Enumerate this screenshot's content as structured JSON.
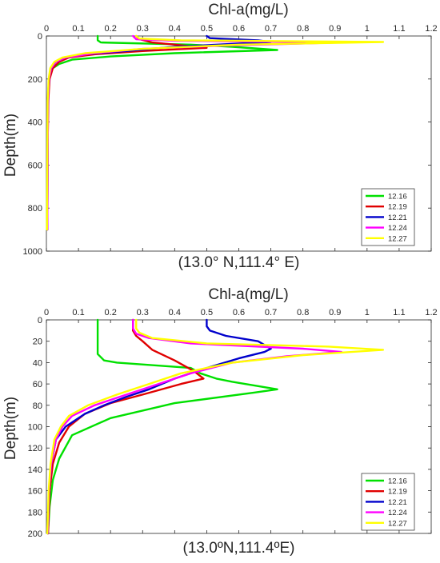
{
  "chart_data": [
    {
      "type": "line",
      "title": "Chl-a(mg/L)",
      "xlabel": "Chl-a(mg/L)",
      "ylabel": "Depth(m)",
      "caption": "(13.0° N,111.4° E)",
      "xlim": [
        0,
        1.2
      ],
      "ylim": [
        0,
        1000
      ],
      "y_reversed": true,
      "x_axis_position": "top",
      "xticks": [
        0,
        0.1,
        0.2,
        0.3,
        0.4,
        0.5,
        0.6,
        0.7,
        0.8,
        0.9,
        1,
        1.1,
        1.2
      ],
      "yticks": [
        0,
        200,
        400,
        600,
        800,
        1000
      ],
      "legend_position": "bottom-right",
      "series": [
        {
          "name": "12.16",
          "color": "#00e000",
          "points": [
            [
              0.16,
              0
            ],
            [
              0.16,
              20
            ],
            [
              0.17,
              30
            ],
            [
              0.45,
              40
            ],
            [
              0.58,
              50
            ],
            [
              0.72,
              65
            ],
            [
              0.4,
              80
            ],
            [
              0.2,
              95
            ],
            [
              0.08,
              110
            ],
            [
              0.04,
              130
            ],
            [
              0.02,
              150
            ],
            [
              0.01,
              180
            ],
            [
              0.006,
              250
            ],
            [
              0.004,
              400
            ],
            [
              0.003,
              600
            ],
            [
              0.002,
              900
            ]
          ]
        },
        {
          "name": "12.19",
          "color": "#e00000",
          "points": [
            [
              0.28,
              0
            ],
            [
              0.29,
              15
            ],
            [
              0.33,
              30
            ],
            [
              0.5,
              55
            ],
            [
              0.3,
              70
            ],
            [
              0.15,
              85
            ],
            [
              0.07,
              100
            ],
            [
              0.04,
              120
            ],
            [
              0.02,
              150
            ],
            [
              0.01,
              200
            ],
            [
              0.006,
              300
            ],
            [
              0.004,
              500
            ],
            [
              0.003,
              900
            ]
          ]
        },
        {
          "name": "12.21",
          "color": "#0000cc",
          "points": [
            [
              0.5,
              0
            ],
            [
              0.51,
              10
            ],
            [
              0.66,
              20
            ],
            [
              0.7,
              28
            ],
            [
              0.4,
              50
            ],
            [
              0.25,
              70
            ],
            [
              0.12,
              85
            ],
            [
              0.06,
              100
            ],
            [
              0.03,
              120
            ],
            [
              0.015,
              150
            ],
            [
              0.008,
              200
            ],
            [
              0.005,
              300
            ],
            [
              0.003,
              900
            ]
          ]
        },
        {
          "name": "12.24",
          "color": "#ff00ff",
          "points": [
            [
              0.27,
              0
            ],
            [
              0.28,
              15
            ],
            [
              0.4,
              22
            ],
            [
              0.92,
              30
            ],
            [
              0.55,
              45
            ],
            [
              0.3,
              60
            ],
            [
              0.15,
              80
            ],
            [
              0.06,
              100
            ],
            [
              0.03,
              120
            ],
            [
              0.015,
              150
            ],
            [
              0.008,
              200
            ],
            [
              0.005,
              300
            ],
            [
              0.003,
              900
            ]
          ]
        },
        {
          "name": "12.27",
          "color": "#ffff00",
          "points": [
            [
              0.28,
              0
            ],
            [
              0.29,
              12
            ],
            [
              0.42,
              20
            ],
            [
              1.05,
              28
            ],
            [
              0.6,
              40
            ],
            [
              0.3,
              60
            ],
            [
              0.12,
              80
            ],
            [
              0.05,
              100
            ],
            [
              0.025,
              120
            ],
            [
              0.012,
              150
            ],
            [
              0.007,
              200
            ],
            [
              0.004,
              300
            ],
            [
              0.002,
              900
            ]
          ]
        }
      ]
    },
    {
      "type": "line",
      "title": "Chl-a(mg/L)",
      "xlabel": "Chl-a(mg/L)",
      "ylabel": "Depth(m)",
      "caption": "(13.0ºN,111.4ºE)",
      "xlim": [
        0,
        1.2
      ],
      "ylim": [
        0,
        200
      ],
      "y_reversed": true,
      "x_axis_position": "top",
      "xticks": [
        0,
        0.1,
        0.2,
        0.3,
        0.4,
        0.5,
        0.6,
        0.7,
        0.8,
        0.9,
        1,
        1.1,
        1.2
      ],
      "yticks": [
        0,
        20,
        40,
        60,
        80,
        100,
        120,
        140,
        160,
        180,
        200
      ],
      "legend_position": "bottom-right",
      "series": [
        {
          "name": "12.16",
          "color": "#00e000",
          "points": [
            [
              0.16,
              0
            ],
            [
              0.16,
              20
            ],
            [
              0.16,
              32
            ],
            [
              0.18,
              38
            ],
            [
              0.22,
              40
            ],
            [
              0.45,
              45
            ],
            [
              0.48,
              50
            ],
            [
              0.53,
              55
            ],
            [
              0.58,
              58
            ],
            [
              0.72,
              65
            ],
            [
              0.65,
              68
            ],
            [
              0.4,
              78
            ],
            [
              0.2,
              92
            ],
            [
              0.08,
              108
            ],
            [
              0.04,
              130
            ],
            [
              0.02,
              150
            ],
            [
              0.01,
              175
            ],
            [
              0.005,
              200
            ]
          ]
        },
        {
          "name": "12.19",
          "color": "#e00000",
          "points": [
            [
              0.27,
              0
            ],
            [
              0.27,
              10
            ],
            [
              0.28,
              15
            ],
            [
              0.3,
              20
            ],
            [
              0.33,
              28
            ],
            [
              0.4,
              38
            ],
            [
              0.46,
              48
            ],
            [
              0.49,
              55
            ],
            [
              0.42,
              60
            ],
            [
              0.3,
              70
            ],
            [
              0.2,
              78
            ],
            [
              0.12,
              88
            ],
            [
              0.07,
              100
            ],
            [
              0.04,
              115
            ],
            [
              0.02,
              135
            ],
            [
              0.01,
              160
            ],
            [
              0.005,
              200
            ]
          ]
        },
        {
          "name": "12.21",
          "color": "#0000cc",
          "points": [
            [
              0.5,
              0
            ],
            [
              0.5,
              6
            ],
            [
              0.51,
              10
            ],
            [
              0.56,
              15
            ],
            [
              0.66,
              20
            ],
            [
              0.7,
              27
            ],
            [
              0.68,
              30
            ],
            [
              0.6,
              36
            ],
            [
              0.5,
              45
            ],
            [
              0.4,
              55
            ],
            [
              0.32,
              65
            ],
            [
              0.25,
              72
            ],
            [
              0.18,
              80
            ],
            [
              0.12,
              88
            ],
            [
              0.06,
              100
            ],
            [
              0.03,
              112
            ],
            [
              0.015,
              135
            ],
            [
              0.008,
              160
            ],
            [
              0.004,
              200
            ]
          ]
        },
        {
          "name": "12.24",
          "color": "#ff00ff",
          "points": [
            [
              0.27,
              0
            ],
            [
              0.27,
              8
            ],
            [
              0.28,
              13
            ],
            [
              0.32,
              17
            ],
            [
              0.45,
              22
            ],
            [
              0.8,
              27
            ],
            [
              0.92,
              30
            ],
            [
              0.75,
              34
            ],
            [
              0.58,
              40
            ],
            [
              0.45,
              50
            ],
            [
              0.35,
              60
            ],
            [
              0.25,
              70
            ],
            [
              0.15,
              80
            ],
            [
              0.08,
              90
            ],
            [
              0.05,
              100
            ],
            [
              0.03,
              112
            ],
            [
              0.015,
              135
            ],
            [
              0.008,
              160
            ],
            [
              0.004,
              200
            ]
          ]
        },
        {
          "name": "12.27",
          "color": "#ffff00",
          "points": [
            [
              0.28,
              0
            ],
            [
              0.28,
              8
            ],
            [
              0.29,
              12
            ],
            [
              0.33,
              17
            ],
            [
              0.5,
              22
            ],
            [
              0.88,
              25
            ],
            [
              1.05,
              28
            ],
            [
              0.8,
              33
            ],
            [
              0.58,
              40
            ],
            [
              0.42,
              50
            ],
            [
              0.32,
              60
            ],
            [
              0.22,
              70
            ],
            [
              0.13,
              80
            ],
            [
              0.07,
              90
            ],
            [
              0.045,
              100
            ],
            [
              0.025,
              112
            ],
            [
              0.013,
              135
            ],
            [
              0.007,
              160
            ],
            [
              0.003,
              200
            ]
          ]
        }
      ]
    }
  ]
}
